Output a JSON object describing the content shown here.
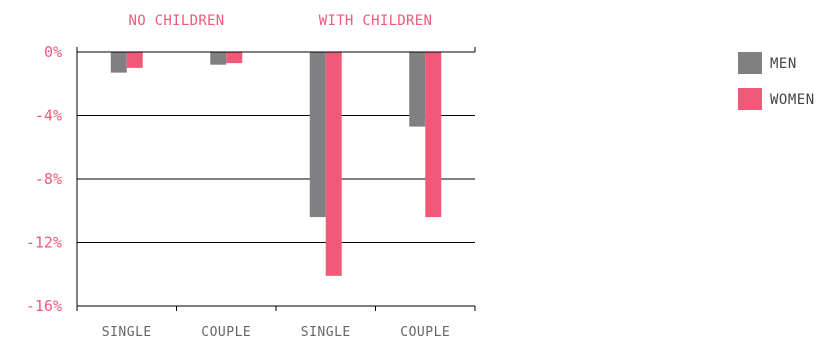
{
  "chart_data": {
    "type": "bar",
    "group_labels": [
      "NO CHILDREN",
      "WITH CHILDREN"
    ],
    "categories": [
      "SINGLE",
      "COUPLE",
      "SINGLE",
      "COUPLE"
    ],
    "series": [
      {
        "name": "MEN",
        "values": [
          -1.3,
          -0.8,
          -10.4,
          -4.7
        ],
        "color": "#808083"
      },
      {
        "name": "WOMEN",
        "values": [
          -1.0,
          -0.7,
          -14.1,
          -10.4
        ],
        "color": "#f05a78"
      }
    ],
    "ylim": [
      -16,
      0
    ],
    "yticks": [
      0,
      -4,
      -8,
      -12,
      -16
    ],
    "ytick_labels": [
      "0%",
      "-4%",
      "-8%",
      "-12%",
      "-16%"
    ],
    "grid": true,
    "legend_position": "top-right",
    "title": "",
    "xlabel": "",
    "ylabel": ""
  }
}
